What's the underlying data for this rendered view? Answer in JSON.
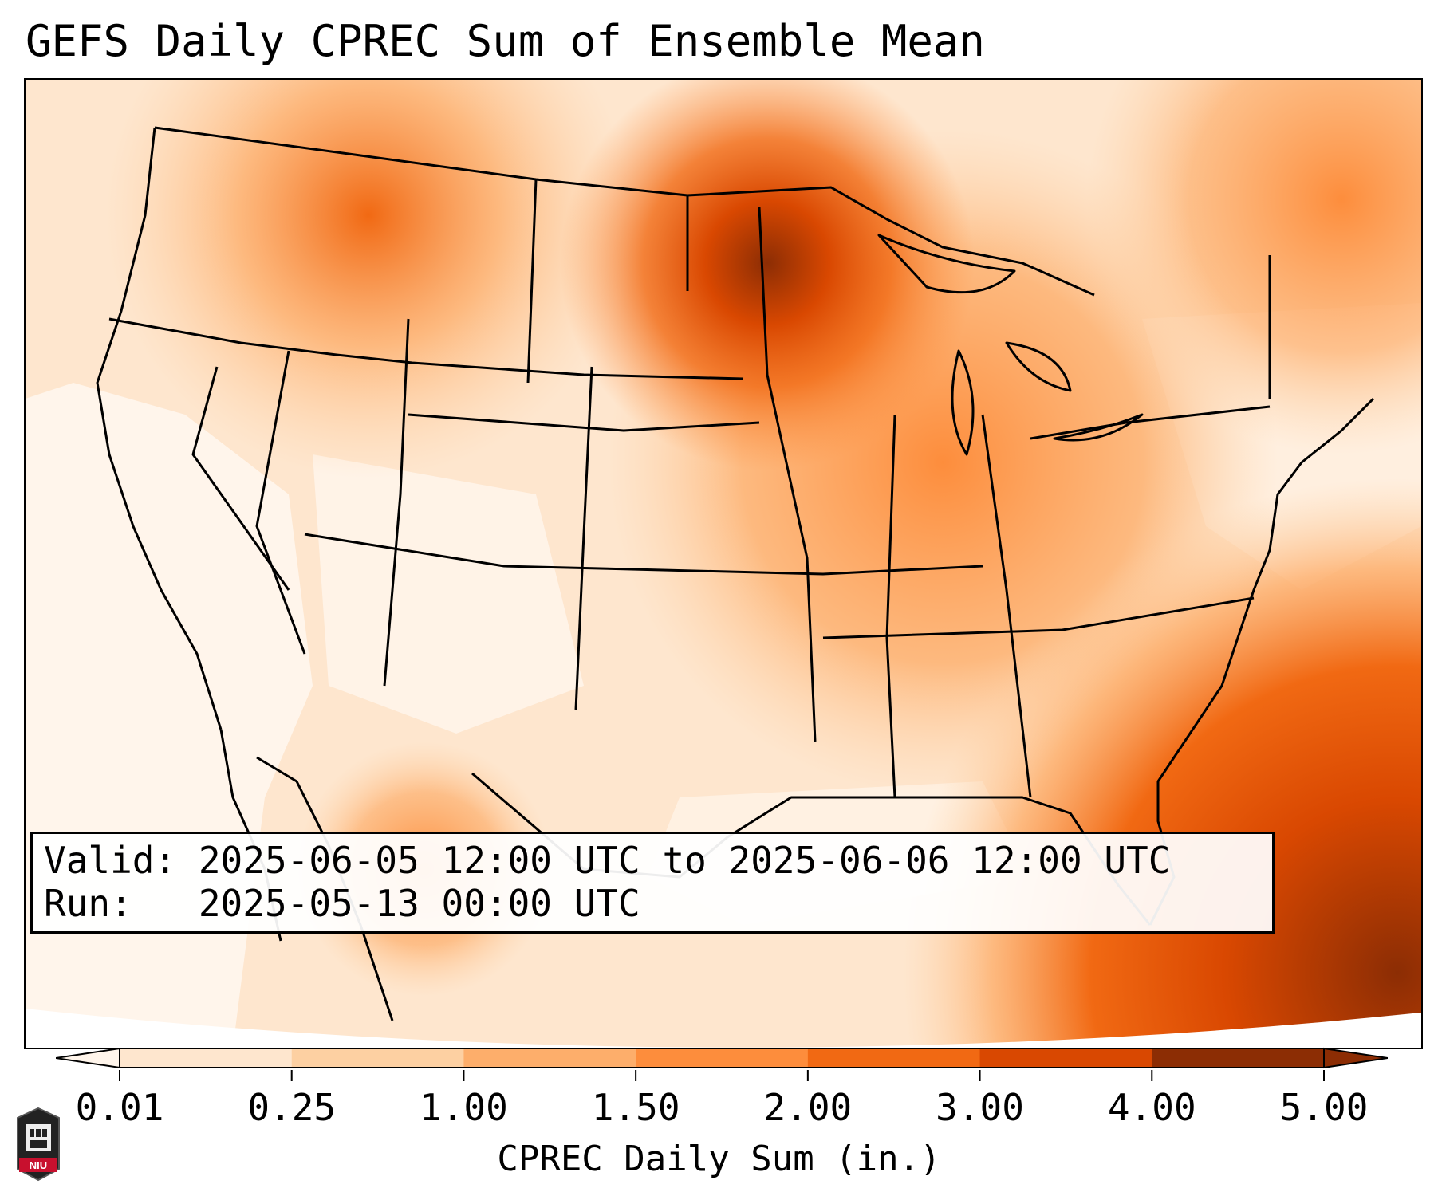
{
  "title": "GEFS Daily CPREC Sum of Ensemble Mean",
  "info": {
    "valid_line": "Valid: 2025-06-05 12:00 UTC to 2025-06-06 12:00 UTC",
    "run_line": "Run:   2025-05-13 00:00 UTC"
  },
  "colorbar": {
    "label": "CPREC Daily Sum (in.)",
    "ticks": [
      "0.01",
      "0.25",
      "1.00",
      "1.50",
      "2.00",
      "3.00",
      "4.00",
      "5.00"
    ],
    "colors": [
      "#fff5eb",
      "#fee6ce",
      "#fdd0a2",
      "#fdae6b",
      "#fd8d3c",
      "#f16913",
      "#d94801",
      "#8c2d04"
    ],
    "extend": "both"
  },
  "logo": {
    "text": "NIU",
    "icon": "niu-logo-icon"
  },
  "map": {
    "projection": "Lambert conformal, CONUS",
    "field": "CPREC daily sum, GEFS ensemble mean"
  }
}
